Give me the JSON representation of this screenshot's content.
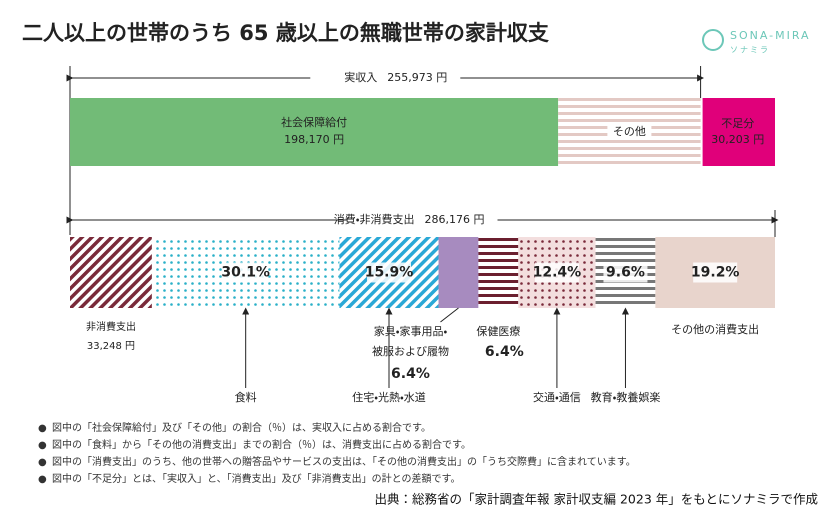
{
  "chart_data": {
    "type": "household-budget-bars",
    "title": "二人以上の世帯のうち 65 歳以上の無職世帯の家計収支",
    "logo": {
      "name": "SONA-MIRA",
      "kana": "ソナミラ"
    },
    "income": {
      "label": "実収入",
      "total": 255973,
      "total_label": "255,973 円",
      "segments": [
        {
          "name": "社会保障給付",
          "value": 198170,
          "value_label": "198,170 円",
          "color": "#72bb77",
          "pattern": "solid"
        },
        {
          "name": "その他",
          "value": 57803,
          "color": "#e3c9c4",
          "pattern": "hstripe"
        }
      ],
      "shortfall": {
        "name": "不足分",
        "value": 30203,
        "value_label": "30,203 円",
        "color": "#e0007a",
        "pattern": "solid"
      }
    },
    "spending": {
      "label": "消費・非消費支出",
      "total": 286176,
      "total_label": "286,176 円",
      "non_consumption": {
        "name": "非消費支出",
        "value": 33248,
        "value_label": "33,248 円",
        "color": "#7a2a3a",
        "pattern": "diag"
      },
      "consumption": [
        {
          "name": "食料",
          "value": 30.1,
          "value_label": "30.1%",
          "color": "#2ab0c8",
          "pattern": "dots"
        },
        {
          "name": "住宅・光熱・水道",
          "value": 15.9,
          "value_label": "15.9%",
          "color": "#2aa8d6",
          "pattern": "diag"
        },
        {
          "name_lines": [
            "家具・家事用品・",
            "被服および履物"
          ],
          "value": 6.4,
          "value_label": "6.4%",
          "color": "#a78bbf",
          "pattern": "solid"
        },
        {
          "name": "保健医療",
          "value": 6.4,
          "value_label": "6.4%",
          "color": "#6b1f2f",
          "pattern": "hstripe"
        },
        {
          "name": "交通・通信",
          "value": 12.4,
          "value_label": "12.4%",
          "color": "#7a2a3a",
          "pattern": "dots"
        },
        {
          "name": "教育・教養娯楽",
          "value": 9.6,
          "value_label": "9.6%",
          "color": "#777777",
          "pattern": "hstripe"
        },
        {
          "name": "その他の消費支出",
          "value": 19.2,
          "value_label": "19.2%",
          "color": "#e8d4cc",
          "pattern": "solid"
        }
      ]
    },
    "notes": [
      "図中の「社会保障給付」及び「その他」の割合（％）は、実収入に占める割合です。",
      "図中の「食料」から「その他の消費支出」までの割合（％）は、消費支出に占める割合です。",
      "図中の「消費支出」のうち、他の世帯への贈答品やサービスの支出は、「その他の消費支出」の「うち交際費」に含まれています。",
      "図中の「不足分」とは、「実収入」と、「消費支出」及び「非消費支出」の計との差額です。"
    ],
    "source": "出典：総務省の「家計調査年報 家計収支編 2023 年」をもとにソナミラで作成"
  }
}
